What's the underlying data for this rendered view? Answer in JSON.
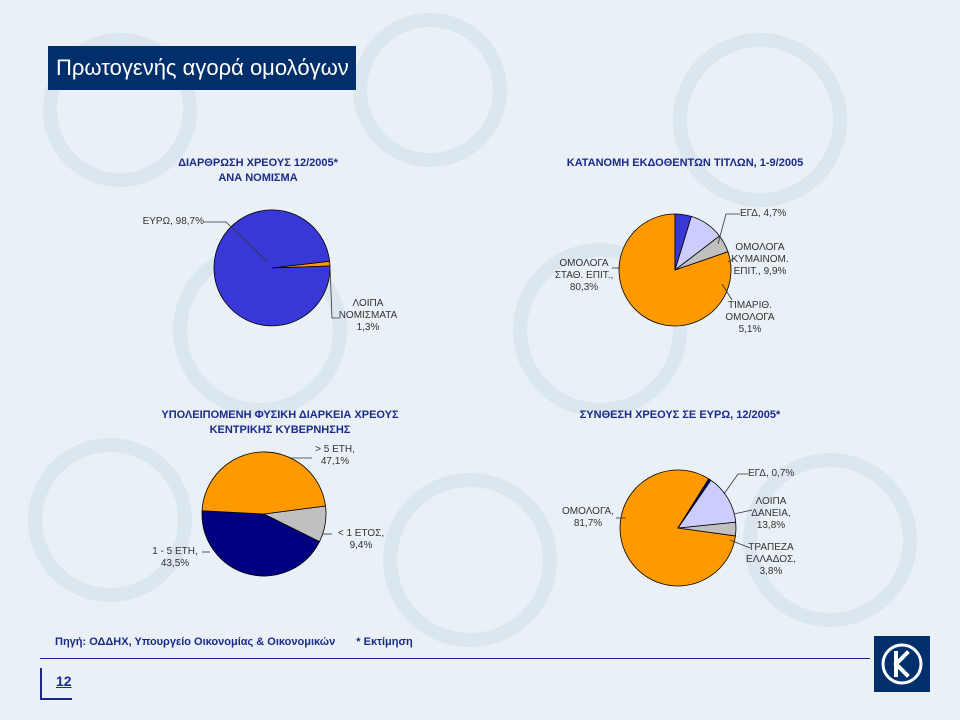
{
  "page": {
    "title": "Πρωτογενής αγορά ομολόγων",
    "page_number": "12"
  },
  "footer": {
    "source": "Πηγή: ΟΔΔΗΧ, Υπουργείο Οικονομίας & Οικονομικών",
    "estimate": "* Εκτίμηση"
  },
  "colors": {
    "navy_brand": "#002f6c",
    "royal_blue": "#3838d6",
    "dark_navy": "#000080",
    "orange": "#ff9900",
    "lavender": "#ccccff",
    "gray": "#c0c0c0"
  },
  "icons": {
    "logo": "bank-logo-icon"
  },
  "chart_data": [
    {
      "type": "pie",
      "title_lines": [
        "ΔΙΑΡΘΡΩΣΗ ΧΡΕΟΥΣ 12/2005*",
        "ΑΝΑ ΝΟΜΙΣΜΑ"
      ],
      "labels": [
        [
          "ΕΥΡΩ, 98,7%"
        ],
        [
          "ΛΟΙΠΑ",
          "ΝΟΜΙΣΜΑΤΑ",
          "1,3%"
        ]
      ],
      "slices": [
        {
          "name": "ΕΥΡΩ",
          "value": 98.7,
          "color": "#3838d6"
        },
        {
          "name": "ΛΟΙΠΑ ΝΟΜΙΣΜΑΤΑ",
          "value": 1.3,
          "color": "#ff9900"
        }
      ]
    },
    {
      "type": "pie",
      "title_lines": [
        "ΚΑΤΑΝΟΜΗ ΕΚΔΟΘΕΝΤΩΝ ΤΙΤΛΩΝ, 1-9/2005"
      ],
      "labels": [
        [
          "ΕΓΔ, 4,7%"
        ],
        [
          "ΟΜΟΛΟΓΑ",
          "ΚΥΜΑΙΝΟΜ.",
          "ΕΠΙΤ., 9,9%"
        ],
        [
          "ΤΙΜΑΡΙΘ.",
          "ΟΜΟΛΟΓΑ",
          "5,1%"
        ],
        [
          "ΟΜΟΛΟΓΑ",
          "ΣΤΑΘ. ΕΠΙΤ.,",
          "80,3%"
        ]
      ],
      "slices": [
        {
          "name": "ΕΓΔ",
          "value": 4.7,
          "color": "#3838d6"
        },
        {
          "name": "ΟΜΟΛΟΓΑ ΚΥΜΑΙΝΟΜ. ΕΠΙΤ.",
          "value": 9.9,
          "color": "#ccccff"
        },
        {
          "name": "ΤΙΜΑΡΙΘ. ΟΜΟΛΟΓΑ",
          "value": 5.1,
          "color": "#c0c0c0"
        },
        {
          "name": "ΟΜΟΛΟΓΑ ΣΤΑΘ. ΕΠΙΤ.",
          "value": 80.3,
          "color": "#ff9900"
        }
      ]
    },
    {
      "type": "pie",
      "title_lines": [
        "ΥΠΟΛΕΙΠΟΜΕΝΗ ΦΥΣΙΚΗ ΔΙΑΡΚΕΙΑ ΧΡΕΟΥΣ",
        "ΚΕΝΤΡΙΚΗΣ ΚΥΒΕΡΝΗΣΗΣ"
      ],
      "labels": [
        [
          "> 5 ΕΤΗ,",
          "47,1%"
        ],
        [
          "< 1 ΕΤΟΣ,",
          "9,4%"
        ],
        [
          "1 - 5 ΕΤΗ,",
          "43,5%"
        ]
      ],
      "slices": [
        {
          "name": "> 5 ΕΤΗ",
          "value": 47.1,
          "color": "#ff9900"
        },
        {
          "name": "< 1 ΕΤΟΣ",
          "value": 9.4,
          "color": "#c0c0c0"
        },
        {
          "name": "1 - 5 ΕΤΗ",
          "value": 43.5,
          "color": "#000080"
        }
      ]
    },
    {
      "type": "pie",
      "title_lines": [
        "ΣΥΝΘΕΣΗ ΧΡΕΟΥΣ ΣΕ ΕΥΡΩ, 12/2005*"
      ],
      "labels": [
        [
          "ΕΓΔ, 0,7%"
        ],
        [
          "ΛΟΙΠΑ",
          "ΔΑΝΕΙΑ,",
          "13,8%"
        ],
        [
          "ΤΡΑΠΕΖΑ",
          "ΕΛΛΑΔΟΣ,",
          "3,8%"
        ],
        [
          "ΟΜΟΛΟΓΑ,",
          "81,7%"
        ]
      ],
      "slices": [
        {
          "name": "ΕΓΔ",
          "value": 0.7,
          "color": "#000080"
        },
        {
          "name": "ΛΟΙΠΑ ΔΑΝΕΙΑ",
          "value": 13.8,
          "color": "#ccccff"
        },
        {
          "name": "ΤΡΑΠΕΖΑ ΕΛΛΑΔΟΣ",
          "value": 3.8,
          "color": "#c0c0c0"
        },
        {
          "name": "ΟΜΟΛΟΓΑ",
          "value": 81.7,
          "color": "#ff9900"
        }
      ]
    }
  ]
}
